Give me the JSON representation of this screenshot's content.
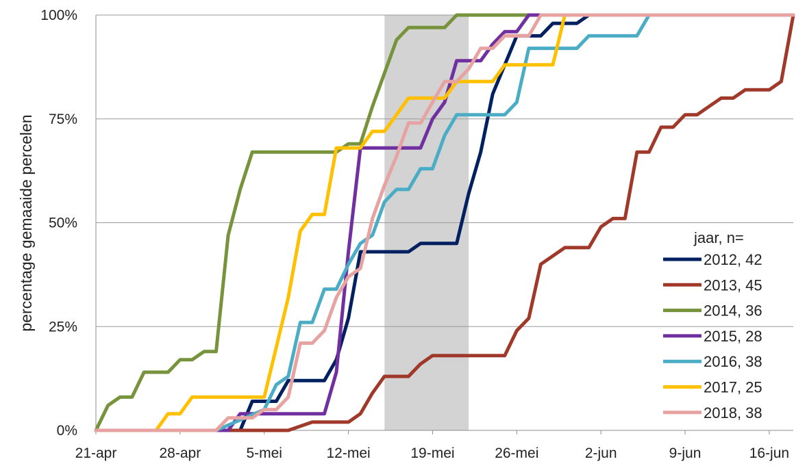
{
  "chart_data": {
    "type": "line",
    "title": "",
    "xlabel": "",
    "ylabel": "percentage gemaaide percelen",
    "x_unit": "day",
    "xlim": [
      "21-apr",
      "18-jun"
    ],
    "ylim": [
      0,
      100
    ],
    "y_ticks": [
      "0%",
      "25%",
      "50%",
      "75%",
      "100%"
    ],
    "x_ticks": [
      "21-apr",
      "28-apr",
      "5-mei",
      "12-mei",
      "19-mei",
      "26-mei",
      "2-jun",
      "9-jun",
      "16-jun"
    ],
    "grid": "horizontal",
    "shaded_period": [
      "15-mei",
      "22-mei"
    ],
    "shaded_color": "#d3d3d3",
    "legend": {
      "title": "jaar,  n=",
      "placement": "lower-right"
    },
    "series": [
      {
        "name": "2012,  42",
        "color": "#002060",
        "x": [
          "21-apr",
          "3-mei",
          "4-mei",
          "5-mei",
          "6-mei",
          "7-mei",
          "8-mei",
          "9-mei",
          "10-mei",
          "11-mei",
          "12-mei",
          "13-mei",
          "14-mei",
          "15-mei",
          "16-mei",
          "17-mei",
          "18-mei",
          "19-mei",
          "20-mei",
          "21-mei",
          "22-mei",
          "23-mei",
          "24-mei",
          "25-mei",
          "26-mei",
          "27-mei",
          "28-mei",
          "29-mei",
          "30-mei",
          "31-mei",
          "1-jun",
          "18-jun"
        ],
        "y": [
          0,
          0,
          7,
          7,
          7,
          12,
          12,
          12,
          12,
          17,
          27,
          43,
          43,
          43,
          43,
          43,
          45,
          45,
          45,
          45,
          57,
          67,
          81,
          88,
          95,
          95,
          95,
          98,
          98,
          98,
          100,
          100
        ]
      },
      {
        "name": "2013,  45",
        "color": "#a0392a",
        "x": [
          "21-apr",
          "6-mei",
          "7-mei",
          "9-mei",
          "10-mei",
          "11-mei",
          "12-mei",
          "13-mei",
          "14-mei",
          "15-mei",
          "16-mei",
          "17-mei",
          "18-mei",
          "19-mei",
          "20-mei",
          "21-mei",
          "22-mei",
          "23-mei",
          "24-mei",
          "25-mei",
          "26-mei",
          "27-mei",
          "28-mei",
          "29-mei",
          "30-mei",
          "31-mei",
          "1-jun",
          "2-jun",
          "3-jun",
          "4-jun",
          "5-jun",
          "6-jun",
          "7-jun",
          "8-jun",
          "9-jun",
          "10-jun",
          "11-jun",
          "12-jun",
          "13-jun",
          "14-jun",
          "15-jun",
          "16-jun",
          "17-jun",
          "18-jun"
        ],
        "y": [
          0,
          0,
          0,
          2,
          2,
          2,
          2,
          4,
          9,
          13,
          13,
          13,
          16,
          18,
          18,
          18,
          18,
          18,
          18,
          18,
          24,
          27,
          40,
          42,
          44,
          44,
          44,
          49,
          51,
          51,
          67,
          67,
          73,
          73,
          76,
          76,
          78,
          80,
          80,
          82,
          82,
          82,
          84,
          100
        ]
      },
      {
        "name": "2014,  36",
        "color": "#77933c",
        "x": [
          "21-apr",
          "22-apr",
          "23-apr",
          "24-apr",
          "25-apr",
          "26-apr",
          "27-apr",
          "28-apr",
          "29-apr",
          "30-apr",
          "1-mei",
          "2-mei",
          "3-mei",
          "4-mei",
          "5-mei",
          "6-mei",
          "7-mei",
          "8-mei",
          "9-mei",
          "10-mei",
          "11-mei",
          "12-mei",
          "13-mei",
          "14-mei",
          "15-mei",
          "16-mei",
          "17-mei",
          "18-mei",
          "19-mei",
          "20-mei",
          "21-mei",
          "22-mei",
          "26-mei",
          "27-mei"
        ],
        "y": [
          0,
          6,
          8,
          8,
          14,
          14,
          14,
          17,
          17,
          19,
          19,
          47,
          58,
          67,
          67,
          67,
          67,
          67,
          67,
          67,
          67,
          69,
          69,
          78,
          86,
          94,
          97,
          97,
          97,
          97,
          100,
          100,
          100,
          100
        ]
      },
      {
        "name": "2015,  28",
        "color": "#7030a0",
        "x": [
          "21-apr",
          "2-mei",
          "3-mei",
          "4-mei",
          "5-mei",
          "6-mei",
          "7-mei",
          "8-mei",
          "9-mei",
          "10-mei",
          "11-mei",
          "12-mei",
          "13-mei",
          "14-mei",
          "15-mei",
          "16-mei",
          "17-mei",
          "18-mei",
          "19-mei",
          "20-mei",
          "21-mei",
          "22-mei",
          "23-mei",
          "24-mei",
          "25-mei",
          "26-mei",
          "27-mei",
          "28-mei"
        ],
        "y": [
          0,
          0,
          4,
          4,
          4,
          4,
          4,
          4,
          4,
          4,
          14,
          43,
          68,
          68,
          68,
          68,
          68,
          68,
          75,
          79,
          89,
          89,
          89,
          93,
          96,
          96,
          100,
          100
        ]
      },
      {
        "name": "2016,  38",
        "color": "#4bacc6",
        "x": [
          "21-apr",
          "1-mei",
          "5-mei",
          "6-mei",
          "7-mei",
          "8-mei",
          "9-mei",
          "10-mei",
          "11-mei",
          "12-mei",
          "13-mei",
          "14-mei",
          "15-mei",
          "16-mei",
          "17-mei",
          "18-mei",
          "19-mei",
          "20-mei",
          "21-mei",
          "22-mei",
          "23-mei",
          "24-mei",
          "25-mei",
          "26-mei",
          "27-mei",
          "28-mei",
          "29-mei",
          "30-mei",
          "31-mei",
          "1-jun",
          "2-jun",
          "3-jun",
          "4-jun",
          "5-jun",
          "6-jun",
          "18-jun"
        ],
        "y": [
          0,
          0,
          5,
          11,
          13,
          26,
          26,
          34,
          34,
          40,
          45,
          47,
          55,
          58,
          58,
          63,
          63,
          71,
          76,
          76,
          76,
          76,
          76,
          79,
          92,
          92,
          92,
          92,
          92,
          95,
          95,
          95,
          95,
          95,
          100,
          100
        ]
      },
      {
        "name": "2017,  25",
        "color": "#ffc000",
        "x": [
          "21-apr",
          "26-apr",
          "27-apr",
          "28-apr",
          "29-apr",
          "30-apr",
          "1-mei",
          "2-mei",
          "3-mei",
          "4-mei",
          "5-mei",
          "6-mei",
          "7-mei",
          "8-mei",
          "9-mei",
          "10-mei",
          "11-mei",
          "12-mei",
          "13-mei",
          "14-mei",
          "15-mei",
          "16-mei",
          "17-mei",
          "18-mei",
          "19-mei",
          "20-mei",
          "21-mei",
          "22-mei",
          "23-mei",
          "24-mei",
          "25-mei",
          "26-mei",
          "27-mei",
          "28-mei",
          "29-mei",
          "30-mei",
          "31-mei",
          "18-jun"
        ],
        "y": [
          0,
          0,
          4,
          4,
          8,
          8,
          8,
          8,
          8,
          8,
          8,
          20,
          32,
          48,
          52,
          52,
          68,
          68,
          68,
          72,
          72,
          76,
          80,
          80,
          80,
          80,
          84,
          84,
          84,
          84,
          88,
          88,
          88,
          88,
          88,
          100,
          100,
          100
        ]
      },
      {
        "name": "2018,  38",
        "color": "#e6a3a1",
        "x": [
          "21-apr",
          "1-mei",
          "2-mei",
          "3-mei",
          "4-mei",
          "5-mei",
          "6-mei",
          "7-mei",
          "8-mei",
          "9-mei",
          "10-mei",
          "11-mei",
          "12-mei",
          "13-mei",
          "14-mei",
          "15-mei",
          "16-mei",
          "17-mei",
          "18-mei",
          "19-mei",
          "20-mei",
          "21-mei",
          "22-mei",
          "23-mei",
          "24-mei",
          "25-mei",
          "26-mei",
          "27-mei",
          "28-mei",
          "18-jun"
        ],
        "y": [
          0,
          0,
          3,
          3,
          3,
          5,
          5,
          8,
          21,
          21,
          24,
          32,
          37,
          39,
          51,
          59,
          66,
          74,
          74,
          79,
          84,
          84,
          87,
          92,
          92,
          95,
          95,
          95,
          100,
          100
        ]
      }
    ]
  }
}
